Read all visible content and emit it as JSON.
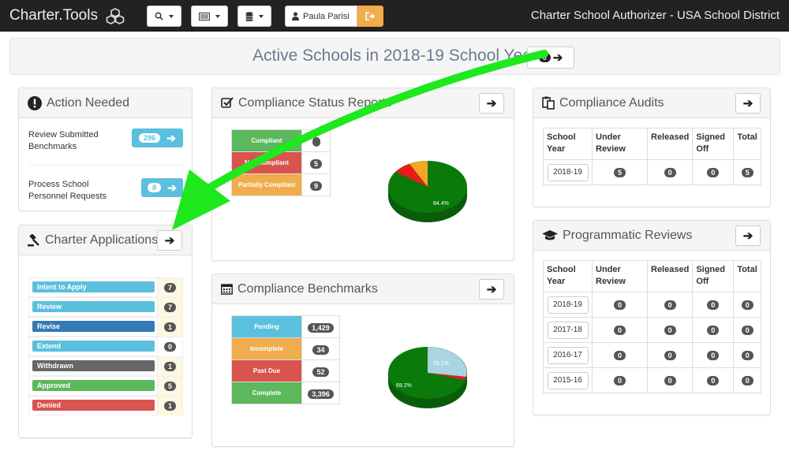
{
  "navbar": {
    "brand": "Charter.Tools",
    "user_name": "Paula Parisi",
    "org_title": "Charter School Authorizer - USA School District",
    "icons": [
      "search-icon",
      "list-icon",
      "database-icon",
      "user-icon",
      "sign-out-icon",
      "cubes-icon"
    ]
  },
  "title_bar": {
    "title": "Active Schools in 2018-19 School Year",
    "count": "0"
  },
  "action_needed": {
    "title": "Action Needed",
    "items": [
      {
        "label": "Review Submitted Benchmarks",
        "count": "296"
      },
      {
        "label": "Process School Personnel Requests",
        "count": "8"
      }
    ]
  },
  "charter_applications": {
    "title": "Charter Applications",
    "items": [
      {
        "label": "Intent to Apply",
        "count": "7",
        "color": "#5bc0de"
      },
      {
        "label": "Review",
        "count": "7",
        "color": "#5bc0de"
      },
      {
        "label": "Revise",
        "count": "1",
        "color": "#337ab7"
      },
      {
        "label": "Extend",
        "count": "0",
        "color": "#5bc0de"
      },
      {
        "label": "Withdrawn",
        "count": "1",
        "color": "#666666"
      },
      {
        "label": "Approved",
        "count": "5",
        "color": "#5cb85c"
      },
      {
        "label": "Denied",
        "count": "1",
        "color": "#d9534f"
      }
    ]
  },
  "compliance_status": {
    "title": "Compliance Status Reports",
    "rows": [
      {
        "label": "Compliant",
        "count": "",
        "color": "#5cb85c"
      },
      {
        "label": "Non-compliant",
        "count": "5",
        "color": "#d9534f"
      },
      {
        "label": "Partially Compliant",
        "count": "9",
        "color": "#f0ad4e"
      }
    ],
    "pie_label": "84.4%"
  },
  "compliance_benchmarks": {
    "title": "Compliance Benchmarks",
    "rows": [
      {
        "label": "Pending",
        "count": "1,429",
        "color": "#5bc0de"
      },
      {
        "label": "Incomplete",
        "count": "34",
        "color": "#f0ad4e"
      },
      {
        "label": "Past Due",
        "count": "52",
        "color": "#d9534f"
      },
      {
        "label": "Complete",
        "count": "3,396",
        "color": "#5cb85c"
      }
    ],
    "pie_labels": [
      "29.1%",
      "69.2%"
    ]
  },
  "compliance_audits": {
    "title": "Compliance Audits",
    "headers": [
      "School Year",
      "Under Review",
      "Released",
      "Signed Off",
      "Total"
    ],
    "rows": [
      {
        "year": "2018-19",
        "under_review": "5",
        "released": "0",
        "signed_off": "0",
        "total": "5"
      }
    ]
  },
  "programmatic_reviews": {
    "title": "Programmatic Reviews",
    "headers": [
      "School Year",
      "Under Review",
      "Released",
      "Signed Off",
      "Total"
    ],
    "rows": [
      {
        "year": "2018-19",
        "under_review": "0",
        "released": "0",
        "signed_off": "0",
        "total": "0"
      },
      {
        "year": "2017-18",
        "under_review": "0",
        "released": "0",
        "signed_off": "0",
        "total": "0"
      },
      {
        "year": "2016-17",
        "under_review": "0",
        "released": "0",
        "signed_off": "0",
        "total": "0"
      },
      {
        "year": "2015-16",
        "under_review": "0",
        "released": "0",
        "signed_off": "0",
        "total": "0"
      }
    ]
  }
}
